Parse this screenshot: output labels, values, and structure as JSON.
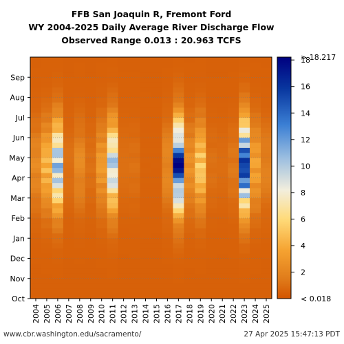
{
  "chart_data": {
    "type": "heatmap",
    "title_lines": [
      "FFB San Joaquin R, Fremont Ford",
      "WY 2004-2025 Daily Average River Discharge Flow",
      "Observed Range 0.013 : 20.963 TCFS"
    ],
    "x_categories": [
      "2004",
      "2005",
      "2006",
      "2007",
      "2008",
      "2009",
      "2010",
      "2011",
      "2012",
      "2013",
      "2014",
      "2015",
      "2016",
      "2017",
      "2018",
      "2019",
      "2020",
      "2021",
      "2022",
      "2023",
      "2024",
      "2025"
    ],
    "y_months": [
      "Oct",
      "Nov",
      "Dec",
      "Jan",
      "Feb",
      "Mar",
      "Apr",
      "May",
      "Jun",
      "Jul",
      "Aug",
      "Sep"
    ],
    "colorbar": {
      "min": 0,
      "max": 18.217,
      "ticks": [
        2,
        4,
        6,
        8,
        10,
        12,
        14,
        16,
        18
      ],
      "tick_labels": [
        "2",
        "4",
        "6",
        "8",
        "10",
        "12",
        "14",
        "16",
        "18"
      ],
      "top_label": "> 18.217",
      "bottom_label": "< 0.018",
      "colors": [
        "#d35400",
        "#e07b1a",
        "#f5a331",
        "#ffdb7a",
        "#f2eedd",
        "#9dbfe0",
        "#3b7fd4",
        "#08369f",
        "#000080"
      ]
    },
    "approx_peak_flow_tcfs": [
      {
        "year": "2004",
        "peak": 2.5
      },
      {
        "year": "2005",
        "peak": 5.0
      },
      {
        "year": "2006",
        "peak": 12.0
      },
      {
        "year": "2007",
        "peak": 1.2
      },
      {
        "year": "2008",
        "peak": 2.5
      },
      {
        "year": "2009",
        "peak": 1.2
      },
      {
        "year": "2010",
        "peak": 3.5
      },
      {
        "year": "2011",
        "peak": 11.0
      },
      {
        "year": "2012",
        "peak": 1.2
      },
      {
        "year": "2013",
        "peak": 1.2
      },
      {
        "year": "2014",
        "peak": 0.6
      },
      {
        "year": "2015",
        "peak": 0.6
      },
      {
        "year": "2016",
        "peak": 2.5
      },
      {
        "year": "2017",
        "peak": 18.2
      },
      {
        "year": "2018",
        "peak": 3.0
      },
      {
        "year": "2019",
        "peak": 6.0
      },
      {
        "year": "2020",
        "peak": 1.2
      },
      {
        "year": "2021",
        "peak": 1.0
      },
      {
        "year": "2022",
        "peak": 1.5
      },
      {
        "year": "2023",
        "peak": 17.5
      },
      {
        "year": "2024",
        "peak": 4.0
      },
      {
        "year": "2025",
        "peak": 2.0
      }
    ]
  },
  "footer": {
    "source": "www.cbr.washington.edu/sacramento/",
    "timestamp": "27 Apr 2025 15:47:13 PDT"
  }
}
